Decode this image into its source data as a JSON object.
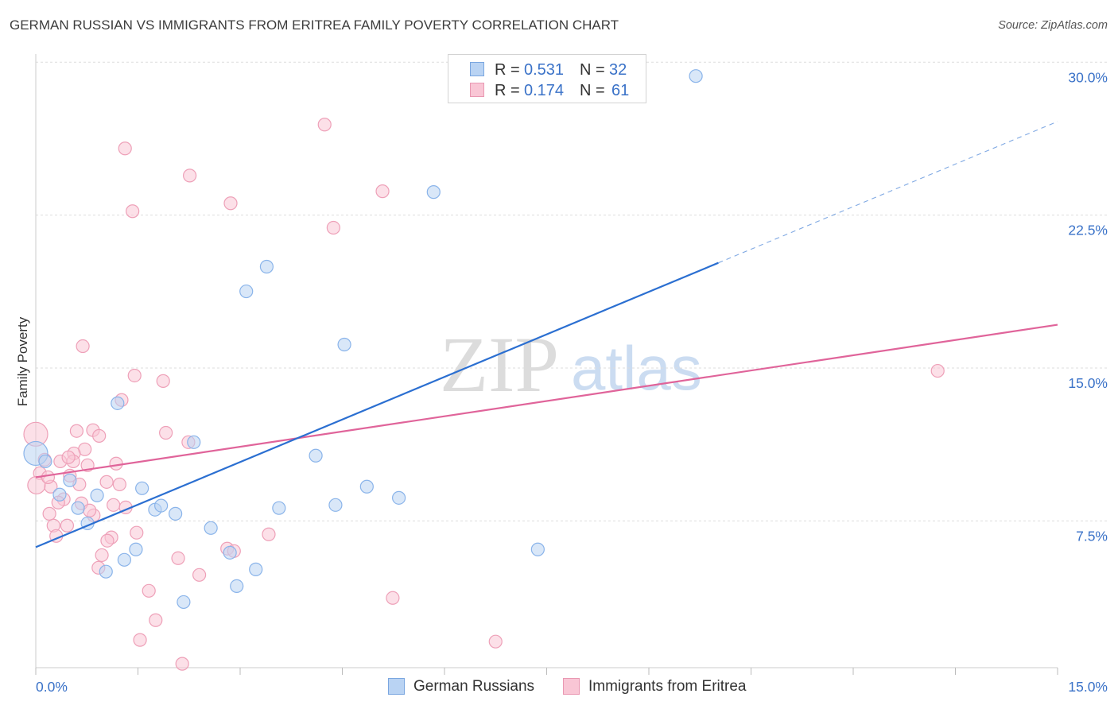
{
  "source": "Source: ZipAtlas.com",
  "watermark": {
    "zip": "ZIP",
    "atlas": "atlas"
  },
  "legend": {
    "r_label": "R =",
    "n_label": "N ="
  },
  "chart_data": {
    "type": "scatter",
    "title": "GERMAN RUSSIAN VS IMMIGRANTS FROM ERITREA FAMILY POVERTY CORRELATION CHART",
    "xlabel": "",
    "ylabel": "Family Poverty",
    "xlim": [
      0,
      15
    ],
    "ylim": [
      0.3,
      30.4
    ],
    "x_tick_step": 1.5,
    "x_ticks": [
      {
        "value": 0,
        "label": "0.0%"
      },
      {
        "value": 15,
        "label": "15.0%"
      }
    ],
    "y_ticks": [
      {
        "value": 30,
        "label": "30.0%"
      },
      {
        "value": 22.5,
        "label": "22.5%"
      },
      {
        "value": 15,
        "label": "15.0%"
      },
      {
        "value": 7.5,
        "label": "7.5%"
      }
    ],
    "grid": true,
    "legend_position": "bottom",
    "series": [
      {
        "name": "German Russians",
        "r": "0.531",
        "n": "32",
        "color": "#8ab4ea",
        "fill": "#b9d3f3",
        "trend_color": "#2b6fd1",
        "trend": {
          "intercept": 6.21,
          "slope": 1.392,
          "solid_until": 10.02
        },
        "points": [
          [
            9.69,
            29.32
          ],
          [
            5.84,
            23.63
          ],
          [
            3.39,
            19.97
          ],
          [
            3.09,
            18.76
          ],
          [
            4.53,
            16.15
          ],
          [
            1.2,
            13.27
          ],
          [
            2.32,
            11.36
          ],
          [
            4.11,
            10.7
          ],
          [
            0.0,
            10.81
          ],
          [
            0.14,
            10.42
          ],
          [
            0.5,
            9.49
          ],
          [
            0.35,
            8.79
          ],
          [
            0.9,
            8.75
          ],
          [
            1.56,
            9.1
          ],
          [
            4.86,
            9.18
          ],
          [
            5.33,
            8.63
          ],
          [
            0.62,
            8.13
          ],
          [
            1.75,
            8.05
          ],
          [
            1.84,
            8.25
          ],
          [
            2.05,
            7.85
          ],
          [
            3.57,
            8.13
          ],
          [
            4.4,
            8.28
          ],
          [
            0.76,
            7.38
          ],
          [
            2.57,
            7.15
          ],
          [
            1.47,
            6.1
          ],
          [
            7.37,
            6.1
          ],
          [
            1.3,
            5.59
          ],
          [
            1.03,
            5.01
          ],
          [
            2.85,
            5.94
          ],
          [
            3.23,
            5.12
          ],
          [
            2.95,
            4.3
          ],
          [
            2.17,
            3.52
          ]
        ]
      },
      {
        "name": "Immigrants from Eritrea",
        "r": "0.174",
        "n": "61",
        "color": "#eea0b8",
        "fill": "#f9c6d5",
        "trend_color": "#e0649a",
        "trend": {
          "intercept": 9.64,
          "slope": 0.4987,
          "solid_until": 15
        },
        "points": [
          [
            4.24,
            26.94
          ],
          [
            1.31,
            25.77
          ],
          [
            2.26,
            24.44
          ],
          [
            5.09,
            23.67
          ],
          [
            2.86,
            23.08
          ],
          [
            1.42,
            22.69
          ],
          [
            4.37,
            21.88
          ],
          [
            0.69,
            16.07
          ],
          [
            1.45,
            14.63
          ],
          [
            1.87,
            14.36
          ],
          [
            13.24,
            14.86
          ],
          [
            1.26,
            13.43
          ],
          [
            0.6,
            11.91
          ],
          [
            0.84,
            11.95
          ],
          [
            0.0,
            11.75
          ],
          [
            0.93,
            11.67
          ],
          [
            1.91,
            11.82
          ],
          [
            2.24,
            11.36
          ],
          [
            0.72,
            11.01
          ],
          [
            0.56,
            10.81
          ],
          [
            0.55,
            10.42
          ],
          [
            0.36,
            10.42
          ],
          [
            0.13,
            10.5
          ],
          [
            0.76,
            10.23
          ],
          [
            1.18,
            10.31
          ],
          [
            0.06,
            9.84
          ],
          [
            0.5,
            9.72
          ],
          [
            1.04,
            9.41
          ],
          [
            1.23,
            9.29
          ],
          [
            0.22,
            9.18
          ],
          [
            0.01,
            9.25
          ],
          [
            0.64,
            9.29
          ],
          [
            0.41,
            8.56
          ],
          [
            0.33,
            8.4
          ],
          [
            0.67,
            8.36
          ],
          [
            1.14,
            8.28
          ],
          [
            1.32,
            8.16
          ],
          [
            0.2,
            7.85
          ],
          [
            0.85,
            7.77
          ],
          [
            0.79,
            8.01
          ],
          [
            0.46,
            7.27
          ],
          [
            0.26,
            7.27
          ],
          [
            0.3,
            6.76
          ],
          [
            1.48,
            6.92
          ],
          [
            3.42,
            6.84
          ],
          [
            1.11,
            6.69
          ],
          [
            1.05,
            6.53
          ],
          [
            2.81,
            6.14
          ],
          [
            2.91,
            6.02
          ],
          [
            0.97,
            5.82
          ],
          [
            2.09,
            5.67
          ],
          [
            0.92,
            5.2
          ],
          [
            2.4,
            4.85
          ],
          [
            1.66,
            4.07
          ],
          [
            5.24,
            3.72
          ],
          [
            1.76,
            2.63
          ],
          [
            1.53,
            1.66
          ],
          [
            6.75,
            1.58
          ],
          [
            2.15,
            0.49
          ],
          [
            0.48,
            10.62
          ],
          [
            0.18,
            9.64
          ]
        ]
      }
    ]
  }
}
